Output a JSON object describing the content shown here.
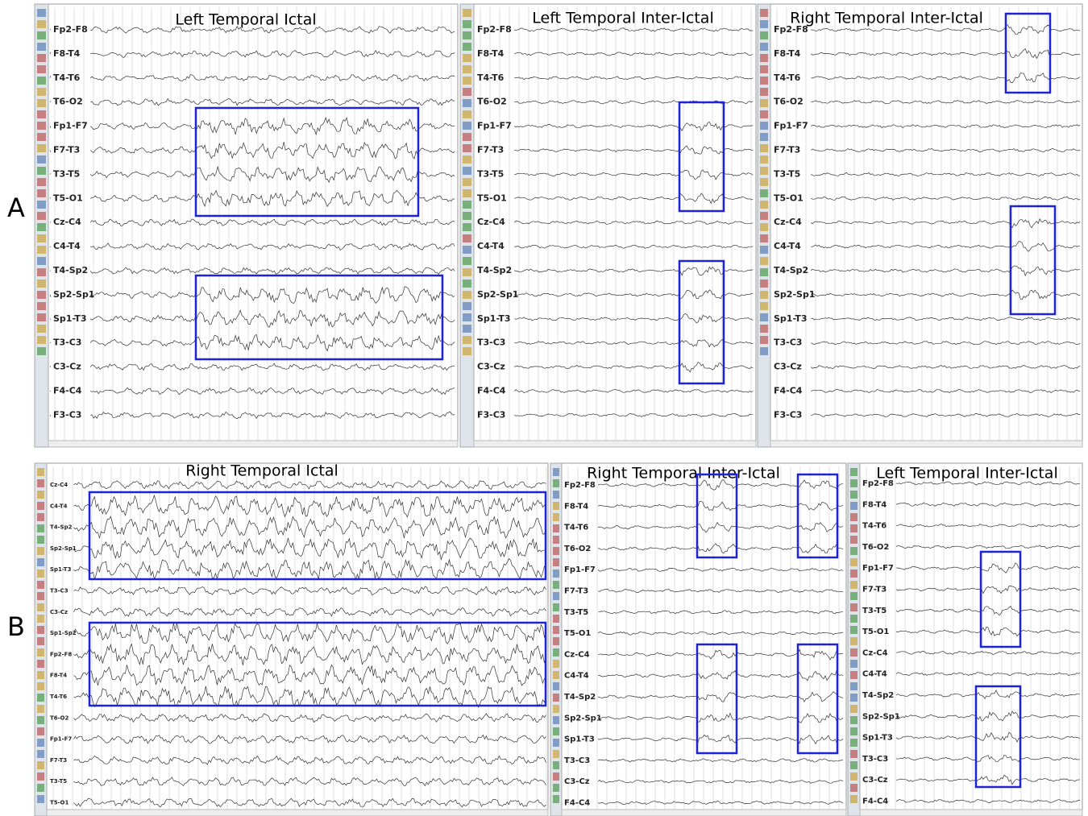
{
  "panels": [
    {
      "label": "A",
      "strips": [
        {
          "title": "Left Temporal Ictal",
          "channels": [
            "Fp2-F8",
            "F8-T4",
            "T4-T6",
            "T6-O2",
            "Fp1-F7",
            "F7-T3",
            "T3-T5",
            "T5-O1",
            "Cz-C4",
            "C4-T4",
            "T4-Sp2",
            "Sp2-Sp1",
            "Sp1-T3",
            "T3-C3",
            "C3-Cz",
            "F4-C4",
            "F3-C3"
          ]
        },
        {
          "title": "Left Temporal Inter-Ictal",
          "channels": [
            "Fp2-F8",
            "F8-T4",
            "T4-T6",
            "T6-O2",
            "Fp1-F7",
            "F7-T3",
            "T3-T5",
            "T5-O1",
            "Cz-C4",
            "C4-T4",
            "T4-Sp2",
            "Sp2-Sp1",
            "Sp1-T3",
            "T3-C3",
            "C3-Cz",
            "F4-C4",
            "F3-C3"
          ]
        },
        {
          "title": "Right Temporal Inter-Ictal",
          "channels": [
            "Fp2-F8",
            "F8-T4",
            "T4-T6",
            "T6-O2",
            "Fp1-F7",
            "F7-T3",
            "T3-T5",
            "T5-O1",
            "Cz-C4",
            "C4-T4",
            "T4-Sp2",
            "Sp2-Sp1",
            "Sp1-T3",
            "T3-C3",
            "C3-Cz",
            "F4-C4",
            "F3-C3"
          ]
        }
      ]
    },
    {
      "label": "B",
      "strips": [
        {
          "title": "Right Temporal Ictal",
          "channels": [
            "Cz-C4",
            "C4-T4",
            "T4-Sp2",
            "Sp2-Sp1",
            "Sp1-T3",
            "T3-C3",
            "C3-Cz",
            "Sp1-Sp2",
            "Fp2-F8",
            "F8-T4",
            "T4-T6",
            "T6-O2",
            "Fp1-F7",
            "F7-T3",
            "T3-T5",
            "T5-O1"
          ]
        },
        {
          "title": "Right Temporal Inter-Ictal",
          "channels": [
            "Fp2-F8",
            "F8-T4",
            "T4-T6",
            "T6-O2",
            "Fp1-F7",
            "F7-T3",
            "T3-T5",
            "T5-O1",
            "Cz-C4",
            "C4-T4",
            "T4-Sp2",
            "Sp2-Sp1",
            "Sp1-T3",
            "T3-C3",
            "C3-Cz",
            "F4-C4"
          ]
        },
        {
          "title": "Left Temporal Inter-Ictal",
          "channels": [
            "Fp2-F8",
            "F8-T4",
            "T4-T6",
            "T6-O2",
            "Fp1-F7",
            "F7-T3",
            "T3-T5",
            "T5-O1",
            "Cz-C4",
            "C4-T4",
            "T4-Sp2",
            "Sp2-Sp1",
            "Sp1-T3",
            "T3-C3",
            "C3-Cz",
            "F4-C4"
          ]
        }
      ]
    }
  ]
}
